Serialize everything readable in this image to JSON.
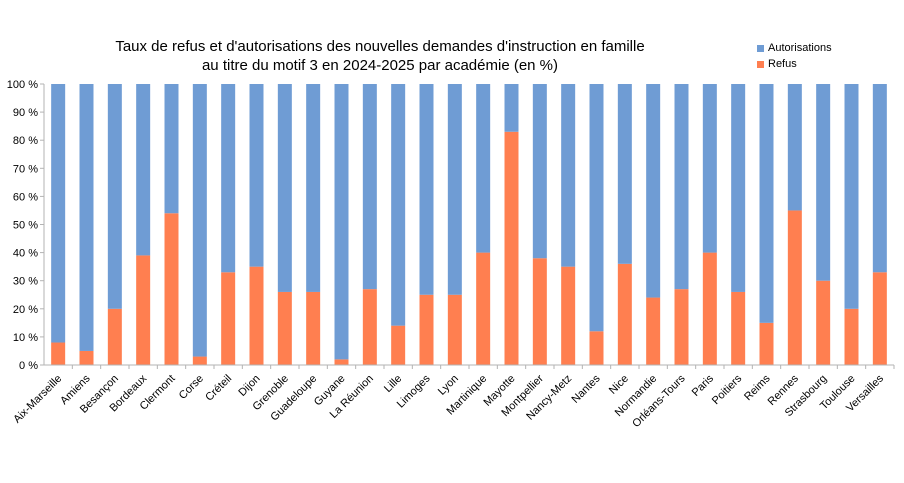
{
  "chart_data": {
    "type": "bar",
    "stacked": true,
    "title_lines": [
      "Taux de refus et d'autorisations des nouvelles demandes d'instruction en famille",
      "au titre du motif 3 en 2024-2025 par académie (en %)"
    ],
    "categories": [
      "Aix-Marseille",
      "Amiens",
      "Besançon",
      "Bordeaux",
      "Clermont",
      "Corse",
      "Créteil",
      "Dijon",
      "Grenoble",
      "Guadeloupe",
      "Guyane",
      "La Réunion",
      "Lille",
      "Limoges",
      "Lyon",
      "Martinique",
      "Mayotte",
      "Montpellier",
      "Nancy-Metz",
      "Nantes",
      "Nice",
      "Normandie",
      "Orléans-Tours",
      "Paris",
      "Poitiers",
      "Reims",
      "Rennes",
      "Strasbourg",
      "Toulouse",
      "Versailles"
    ],
    "series": [
      {
        "name": "Refus",
        "color": "#ff7f50",
        "values": [
          8,
          5,
          20,
          39,
          54,
          3,
          33,
          35,
          26,
          26,
          2,
          27,
          14,
          25,
          25,
          40,
          83,
          38,
          35,
          12,
          36,
          24,
          27,
          40,
          26,
          15,
          55,
          30,
          20,
          33
        ]
      },
      {
        "name": "Autorisations",
        "color": "#6f9cd4",
        "values": [
          92,
          95,
          80,
          61,
          46,
          97,
          67,
          65,
          74,
          74,
          98,
          73,
          86,
          75,
          75,
          60,
          17,
          62,
          65,
          88,
          64,
          76,
          73,
          60,
          74,
          85,
          45,
          70,
          80,
          67
        ]
      }
    ],
    "y_ticks": [
      "0 %",
      "10 %",
      "20 %",
      "30 %",
      "40 %",
      "50 %",
      "60 %",
      "70 %",
      "80 %",
      "90 %",
      "100 %"
    ],
    "ylim": [
      0,
      100
    ],
    "grid": false,
    "legend": {
      "position": "top-right",
      "items": [
        {
          "label": "Autorisations",
          "color": "#6f9cd4"
        },
        {
          "label": "Refus",
          "color": "#ff7f50"
        }
      ]
    }
  }
}
